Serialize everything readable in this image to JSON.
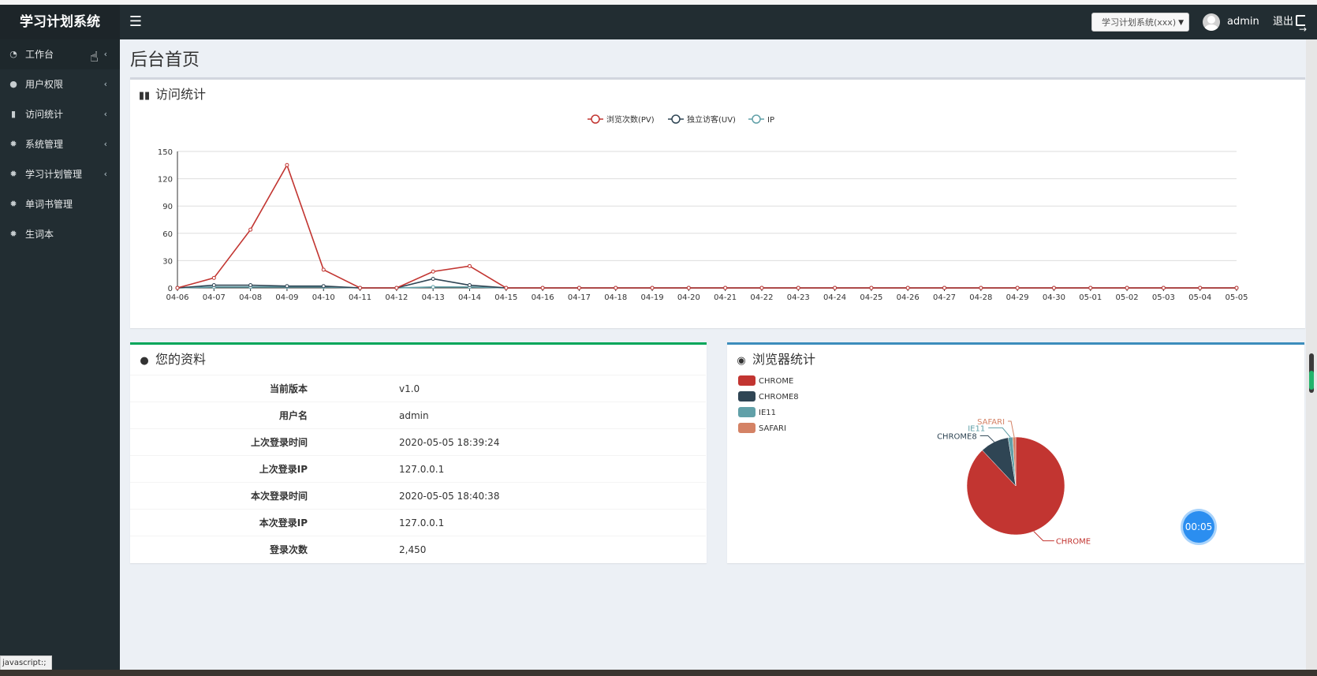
{
  "app": {
    "title": "学习计划系统",
    "system_selector": "学习计划系统(xxx)",
    "user": "admin",
    "logout_label": "退出"
  },
  "sidebar": {
    "items": [
      {
        "label": "工作台",
        "icon": "dashboard-icon",
        "chevron": true
      },
      {
        "label": "用户权限",
        "icon": "user-icon",
        "chevron": true
      },
      {
        "label": "访问统计",
        "icon": "bar-chart-icon",
        "chevron": true
      },
      {
        "label": "系统管理",
        "icon": "gear-icon",
        "chevron": true
      },
      {
        "label": "学习计划管理",
        "icon": "gear-icon",
        "chevron": true
      },
      {
        "label": "单词书管理",
        "icon": "gear-icon",
        "chevron": false
      },
      {
        "label": "生词本",
        "icon": "gear-icon",
        "chevron": false
      }
    ]
  },
  "status_tip": "javascript:;",
  "page": {
    "title": "后台首页"
  },
  "visit_box": {
    "title": "访问统计"
  },
  "profile_box": {
    "title": "您的资料",
    "rows": [
      {
        "key": "当前版本",
        "value": "v1.0"
      },
      {
        "key": "用户名",
        "value": "admin"
      },
      {
        "key": "上次登录时间",
        "value": "2020-05-05 18:39:24"
      },
      {
        "key": "上次登录IP",
        "value": "127.0.0.1"
      },
      {
        "key": "本次登录时间",
        "value": "2020-05-05 18:40:38"
      },
      {
        "key": "本次登录IP",
        "value": "127.0.0.1"
      },
      {
        "key": "登录次数",
        "value": "2,450"
      }
    ]
  },
  "browser_box": {
    "title": "浏览器统计"
  },
  "timer": "00:05",
  "chart_data": [
    {
      "type": "line",
      "x": [
        "04-06",
        "04-07",
        "04-08",
        "04-09",
        "04-10",
        "04-11",
        "04-12",
        "04-13",
        "04-14",
        "04-15",
        "04-16",
        "04-17",
        "04-18",
        "04-19",
        "04-20",
        "04-21",
        "04-22",
        "04-23",
        "04-24",
        "04-25",
        "04-26",
        "04-27",
        "04-28",
        "04-29",
        "04-30",
        "05-01",
        "05-02",
        "05-03",
        "05-04",
        "05-05"
      ],
      "series": [
        {
          "name": "浏览次数(PV)",
          "color": "#c23531",
          "values": [
            0,
            11,
            64,
            135,
            20,
            0,
            0,
            18,
            24,
            0,
            0,
            0,
            0,
            0,
            0,
            0,
            0,
            0,
            0,
            0,
            0,
            0,
            0,
            0,
            0,
            0,
            0,
            0,
            0,
            0
          ]
        },
        {
          "name": "独立访客(UV)",
          "color": "#2f4554",
          "values": [
            0,
            3,
            3,
            2,
            2,
            0,
            0,
            10,
            3,
            0,
            0,
            0,
            0,
            0,
            0,
            0,
            0,
            0,
            0,
            0,
            0,
            0,
            0,
            0,
            0,
            0,
            0,
            0,
            0,
            0
          ]
        },
        {
          "name": "IP",
          "color": "#61a0a8",
          "values": [
            0,
            1,
            1,
            1,
            1,
            0,
            0,
            1,
            1,
            0,
            0,
            0,
            0,
            0,
            0,
            0,
            0,
            0,
            0,
            0,
            0,
            0,
            0,
            0,
            0,
            0,
            0,
            0,
            0,
            0
          ]
        }
      ],
      "yticks": [
        0,
        30,
        60,
        90,
        120,
        150
      ],
      "ylim": [
        0,
        150
      ],
      "grid": true,
      "legend": "top-center"
    },
    {
      "type": "pie",
      "legend": "top-left",
      "slices": [
        {
          "name": "CHROME",
          "value": 88,
          "color": "#c23531"
        },
        {
          "name": "CHROME8",
          "value": 9.5,
          "color": "#2f4554"
        },
        {
          "name": "IE11",
          "value": 1.5,
          "color": "#61a0a8"
        },
        {
          "name": "SAFARI",
          "value": 1,
          "color": "#d48265"
        }
      ]
    }
  ]
}
